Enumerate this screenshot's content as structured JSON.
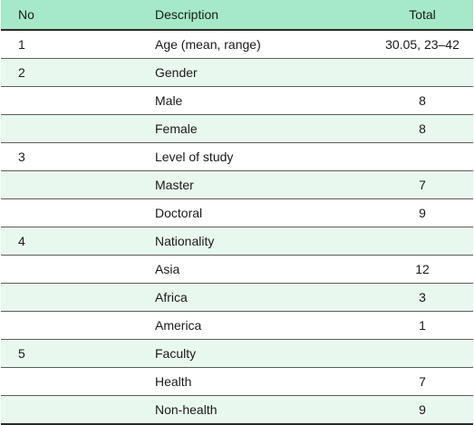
{
  "table": {
    "headers": {
      "no": "No",
      "description": "Description",
      "total": "Total"
    },
    "rows": [
      {
        "no": "1",
        "description": "Age (mean, range)",
        "total": "30.05, 23–42"
      },
      {
        "no": "2",
        "description": "Gender",
        "total": ""
      },
      {
        "no": "",
        "description": "Male",
        "total": "8"
      },
      {
        "no": "",
        "description": "Female",
        "total": "8"
      },
      {
        "no": "3",
        "description": "Level of study",
        "total": ""
      },
      {
        "no": "",
        "description": "Master",
        "total": "7"
      },
      {
        "no": "",
        "description": "Doctoral",
        "total": "9"
      },
      {
        "no": "4",
        "description": "Nationality",
        "total": ""
      },
      {
        "no": "",
        "description": "Asia",
        "total": "12"
      },
      {
        "no": "",
        "description": "Africa",
        "total": "3"
      },
      {
        "no": "",
        "description": "America",
        "total": "1"
      },
      {
        "no": "5",
        "description": "Faculty",
        "total": ""
      },
      {
        "no": "",
        "description": "Health",
        "total": "7"
      },
      {
        "no": "",
        "description": "Non-health",
        "total": "9"
      }
    ]
  },
  "colors": {
    "header_bg": "#a6e9c8",
    "row_shade": "#e9f8ef",
    "rule": "#2a2a2a"
  }
}
